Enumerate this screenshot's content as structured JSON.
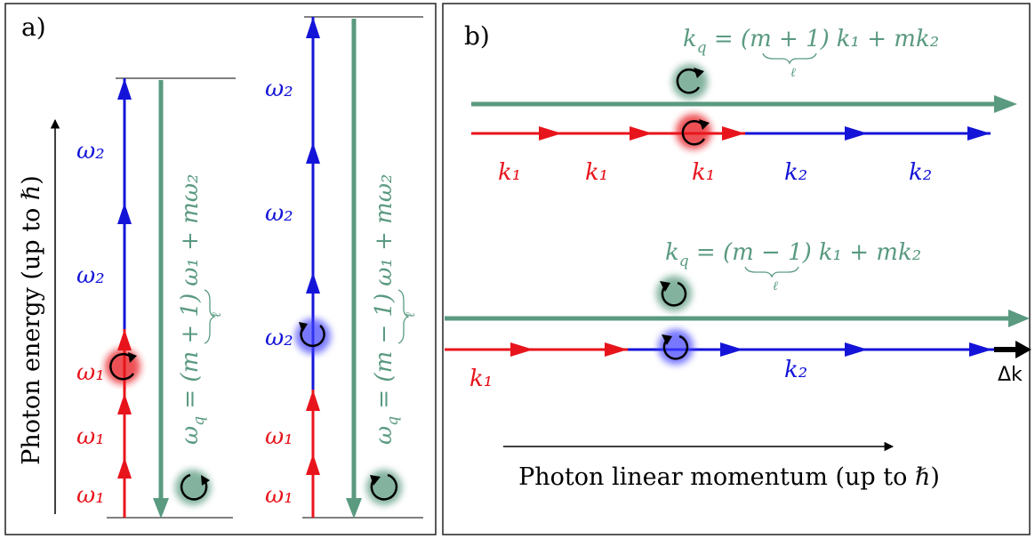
{
  "colors": {
    "red": "#e8141c",
    "blue": "#1414d8",
    "green": "#5a9a80",
    "black": "#000000",
    "panel_border": "#222222"
  },
  "panel_a": {
    "label": "a)",
    "y_axis_label": "Photon energy (up to ℏ)",
    "left_stack": {
      "red_labels": [
        "ω₁",
        "ω₁",
        "ω₁"
      ],
      "blue_labels": [
        "ω₂",
        "ω₂"
      ],
      "formula_lhs": "ω",
      "formula_sub": "q",
      "formula_eq": " = ",
      "formula_paren": "(m + 1)",
      "formula_underbrace": "ℓ",
      "formula_rest": "ω₁ + mω₂"
    },
    "right_stack": {
      "red_labels": [
        "ω₁",
        "ω₁"
      ],
      "blue_labels": [
        "ω₂",
        "ω₂",
        "ω₂"
      ],
      "formula_lhs": "ω",
      "formula_sub": "q",
      "formula_eq": " = ",
      "formula_paren": "(m − 1)",
      "formula_underbrace": "ℓ",
      "formula_rest": "ω₁ + mω₂"
    },
    "icons": [
      "red-circular-polarization-icon",
      "blue-circular-polarization-icon",
      "green-circular-polarization-icon"
    ]
  },
  "panel_b": {
    "label": "b)",
    "x_axis_label": "Photon linear momentum (up to ℏ)",
    "top_row": {
      "formula_lhs": "k",
      "formula_sub": "q",
      "formula_eq": " = ",
      "formula_paren": "(m + 1)",
      "formula_underbrace": "ℓ",
      "formula_rest": "k₁ + mk₂",
      "red_labels": [
        "k₁",
        "k₁",
        "k₁"
      ],
      "blue_labels": [
        "k₂",
        "k₂"
      ]
    },
    "bottom_row": {
      "formula_lhs": "k",
      "formula_sub": "q",
      "formula_eq": " = ",
      "formula_paren": "(m − 1)",
      "formula_underbrace": "ℓ",
      "formula_rest": "k₁ + mk₂",
      "red_label": "k₁",
      "blue_label": "k₂",
      "delta_label": "Δk"
    }
  }
}
